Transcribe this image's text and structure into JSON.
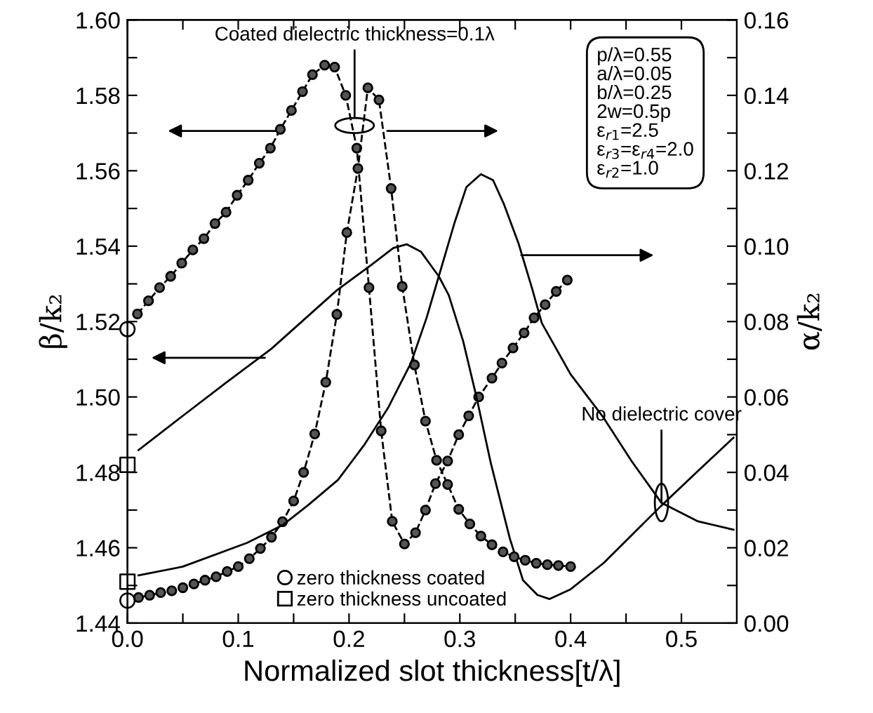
{
  "chart_data": {
    "type": "line",
    "xlabel": "Normalized slot thickness[t/λ]",
    "ylabel": "β/k₂",
    "y2label": "α/k₂",
    "xlim": [
      0,
      0.55
    ],
    "ylim": [
      1.44,
      1.6
    ],
    "y2lim": [
      0,
      0.16
    ],
    "xticks": [
      {
        "value": 0,
        "label": "0.0"
      },
      {
        "value": 0.05,
        "label": null
      },
      {
        "value": 0.1,
        "label": "0.1"
      },
      {
        "value": 0.15,
        "label": null
      },
      {
        "value": 0.2,
        "label": "0.2"
      },
      {
        "value": 0.25,
        "label": null
      },
      {
        "value": 0.3,
        "label": "0.3"
      },
      {
        "value": 0.35,
        "label": null
      },
      {
        "value": 0.4,
        "label": "0.4"
      },
      {
        "value": 0.45,
        "label": null
      },
      {
        "value": 0.5,
        "label": "0.5"
      }
    ],
    "yticks": [
      1.44,
      {
        "value": 1.45,
        "label": null
      },
      1.46,
      {
        "value": 1.47,
        "label": null
      },
      1.48,
      {
        "value": 1.49,
        "label": null
      },
      {
        "value": 1.5,
        "label": "1.50"
      },
      {
        "value": 1.51,
        "label": null
      },
      1.52,
      {
        "value": 1.53,
        "label": null
      },
      1.54,
      {
        "value": 1.55,
        "label": null
      },
      1.56,
      {
        "value": 1.57,
        "label": null
      },
      1.58,
      {
        "value": 1.59,
        "label": null
      },
      {
        "value": 1.6,
        "label": "1.60"
      }
    ],
    "y2ticks": [
      {
        "value": 0,
        "label": "0.00"
      },
      {
        "value": 0.01,
        "label": null
      },
      0.02,
      {
        "value": 0.03,
        "label": null
      },
      0.04,
      {
        "value": 0.05,
        "label": null
      },
      0.06,
      {
        "value": 0.07,
        "label": null
      },
      0.08,
      {
        "value": 0.09,
        "label": null
      },
      {
        "value": 0.1,
        "label": "0.10"
      },
      {
        "value": 0.11,
        "label": null
      },
      0.12,
      {
        "value": 0.13,
        "label": null
      },
      0.14,
      {
        "value": 0.15,
        "label": null
      },
      0.16
    ],
    "grid": false,
    "legend": "bottom left",
    "series": [
      {
        "axis": "y",
        "color": "#000000",
        "marker": "circle",
        "line_style": "dashed",
        "x": [
          0.009,
          0.019,
          0.029,
          0.039,
          0.049,
          0.059,
          0.069,
          0.079,
          0.089,
          0.099,
          0.109,
          0.119,
          0.129,
          0.138,
          0.148,
          0.158,
          0.167,
          0.178,
          0.187,
          0.197,
          0.207,
          0.218,
          0.229,
          0.239,
          0.25,
          0.26,
          0.269,
          0.278,
          0.289,
          0.299,
          0.308,
          0.317,
          0.329,
          0.338,
          0.348,
          0.358,
          0.367,
          0.377,
          0.387,
          0.397
        ],
        "values": [
          1.522,
          1.5255,
          1.529,
          1.532,
          1.5355,
          1.539,
          1.542,
          1.546,
          1.549,
          1.5535,
          1.5575,
          1.562,
          1.566,
          1.571,
          1.576,
          1.581,
          1.5855,
          1.588,
          1.5875,
          1.58,
          1.566,
          1.529,
          1.491,
          1.467,
          1.461,
          1.464,
          1.47,
          1.477,
          1.483,
          1.49,
          1.495,
          1.5,
          1.505,
          1.509,
          1.513,
          1.517,
          1.521,
          1.5245,
          1.528,
          1.531
        ]
      },
      {
        "axis": "y2",
        "color": "#000000",
        "marker": "circle",
        "line_style": "dashed",
        "x": [
          0.01,
          0.02,
          0.03,
          0.04,
          0.05,
          0.06,
          0.07,
          0.08,
          0.09,
          0.1,
          0.11,
          0.12,
          0.13,
          0.14,
          0.15,
          0.159,
          0.169,
          0.179,
          0.189,
          0.198,
          0.208,
          0.217,
          0.227,
          0.238,
          0.248,
          0.259,
          0.269,
          0.279,
          0.289,
          0.299,
          0.309,
          0.319,
          0.329,
          0.339,
          0.349,
          0.359,
          0.369,
          0.379,
          0.389,
          0.4
        ],
        "values": [
          0.0068,
          0.0074,
          0.0081,
          0.0086,
          0.0094,
          0.0104,
          0.0114,
          0.0123,
          0.0137,
          0.015,
          0.0171,
          0.0198,
          0.0228,
          0.0269,
          0.0324,
          0.04,
          0.0502,
          0.0639,
          0.0819,
          0.1036,
          0.1206,
          0.142,
          0.1388,
          0.1153,
          0.0893,
          0.0685,
          0.0536,
          0.0432,
          0.0368,
          0.0302,
          0.0263,
          0.0231,
          0.0208,
          0.0189,
          0.0176,
          0.0167,
          0.0159,
          0.0155,
          0.0153,
          0.015
        ]
      },
      {
        "axis": "y",
        "color": "#000000",
        "marker": "none",
        "line_style": "solid",
        "x": [
          0.01,
          0.05,
          0.09,
          0.13,
          0.189,
          0.22,
          0.24,
          0.252,
          0.265,
          0.281,
          0.29,
          0.303,
          0.315,
          0.328,
          0.345,
          0.357,
          0.37,
          0.381,
          0.4,
          0.43,
          0.482,
          0.51,
          0.547
        ],
        "values": [
          1.4859,
          1.495,
          1.504,
          1.5128,
          1.5283,
          1.535,
          1.5395,
          1.5405,
          1.5385,
          1.532,
          1.527,
          1.5148,
          1.5,
          1.4824,
          1.4626,
          1.4514,
          1.4475,
          1.4464,
          1.449,
          1.456,
          1.4712,
          1.479,
          1.4892
        ]
      },
      {
        "axis": "y2",
        "color": "#000000",
        "marker": "none",
        "line_style": "solid",
        "x": [
          0.01,
          0.05,
          0.108,
          0.14,
          0.163,
          0.19,
          0.214,
          0.235,
          0.256,
          0.27,
          0.281,
          0.295,
          0.306,
          0.319,
          0.33,
          0.34,
          0.353,
          0.365,
          0.374,
          0.4,
          0.429,
          0.455,
          0.482,
          0.515,
          0.547
        ],
        "values": [
          0.0127,
          0.015,
          0.0213,
          0.026,
          0.0313,
          0.038,
          0.0474,
          0.057,
          0.0691,
          0.081,
          0.092,
          0.106,
          0.1157,
          0.1191,
          0.1175,
          0.111,
          0.1007,
          0.089,
          0.0796,
          0.066,
          0.0548,
          0.043,
          0.0319,
          0.027,
          0.0248
        ]
      },
      {
        "type": "scatter",
        "axis": "y",
        "name": "zero thickness coated",
        "color": "#000000",
        "marker": "circle",
        "x": [
          0
        ],
        "values": [
          1.518
        ]
      },
      {
        "type": "scatter",
        "axis": "y",
        "name": "zero thickness uncoated",
        "color": "#000000",
        "marker": "square",
        "x": [
          0
        ],
        "values": [
          1.482
        ]
      },
      {
        "type": "scatter",
        "axis": "y2",
        "color": "#000000",
        "marker": "circle",
        "x": [
          0
        ],
        "values": [
          0.006
        ]
      },
      {
        "type": "scatter",
        "axis": "y2",
        "color": "#000000",
        "marker": "square",
        "x": [
          0
        ],
        "values": [
          0.011
        ]
      }
    ],
    "annotations": [
      {
        "text": "Coated dielectric thickness=0.1λ",
        "x": 0.205,
        "y": 1.572
      },
      {
        "text": "No dielectric cover",
        "x": 0.482,
        "y": 1.472
      },
      "p/λ=0.55\na/λ=0.05\nb/λ=0.25\n2w=0.5p\nε$_{r1}$=2.5\nε$_{r3}$=ε$_{r4}$=2.0\nε$_{r2}$=1.0"
    ]
  }
}
